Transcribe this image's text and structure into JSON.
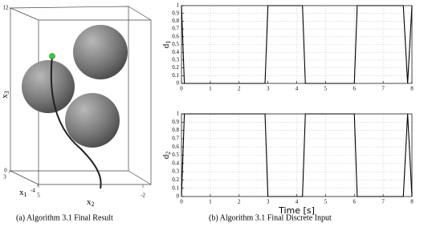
{
  "chart_data": [
    {
      "type": "surface3d",
      "axes": [
        {
          "label": {
            "base": "x",
            "sub": "1"
          },
          "lim": [
            3,
            -4
          ],
          "ticks": [
            3,
            -4
          ]
        },
        {
          "label": {
            "base": "x",
            "sub": "2"
          },
          "lim": [
            5,
            -2
          ],
          "ticks": [
            5,
            -2
          ]
        },
        {
          "label": {
            "base": "x",
            "sub": "3"
          },
          "lim": [
            0,
            12
          ],
          "ticks": [
            0,
            12
          ]
        }
      ]
    },
    {
      "type": "line",
      "ylabel": {
        "base": "d",
        "sub": "1"
      },
      "x": [
        0,
        0.1,
        2.9,
        3.0,
        4.2,
        4.3,
        6.0,
        6.1,
        7.7,
        7.85,
        8
      ],
      "values": [
        1,
        0,
        0,
        1,
        1,
        0,
        0,
        1,
        1,
        0,
        1
      ],
      "color": "#000000",
      "xlim": [
        0,
        8
      ],
      "xticks": [
        0,
        1,
        2,
        3,
        4,
        5,
        6,
        7,
        8
      ],
      "ylim": [
        0,
        1
      ],
      "yticks": [
        0,
        0.1,
        0.2,
        0.3,
        0.4,
        0.5,
        0.6,
        0.7,
        0.8,
        0.9,
        1
      ],
      "grid": true
    },
    {
      "type": "line",
      "ylabel": {
        "base": "d",
        "sub": "2"
      },
      "xlabel": "Time [s]",
      "x": [
        0,
        0.1,
        2.9,
        3.0,
        4.2,
        4.3,
        6.0,
        6.1,
        7.7,
        7.85,
        8
      ],
      "values": [
        0,
        1,
        1,
        0,
        0,
        1,
        1,
        0,
        0,
        1,
        0
      ],
      "color": "#000000",
      "xlim": [
        0,
        8
      ],
      "xticks": [
        0,
        1,
        2,
        3,
        4,
        5,
        6,
        7,
        8
      ],
      "ylim": [
        0,
        1
      ],
      "yticks": [
        0,
        0.1,
        0.2,
        0.3,
        0.4,
        0.5,
        0.6,
        0.7,
        0.8,
        0.9,
        1
      ],
      "grid": true
    }
  ],
  "captions": [
    "(a) Algorithm 3.1 Final Result",
    "(b) Algorithm 3.1 Final Discrete Input"
  ]
}
